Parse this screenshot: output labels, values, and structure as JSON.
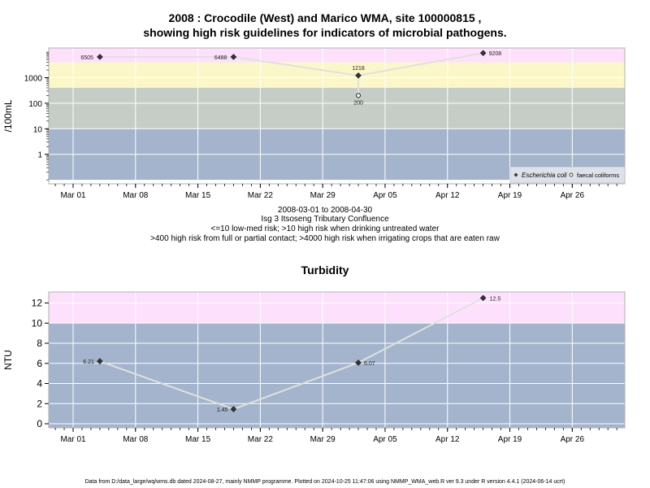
{
  "titles": {
    "main_line1": "2008 : Crocodile (West) and Marico WMA, site 100000815 ,",
    "main_line2": "showing high risk guidelines for indicators of microbial pathogens.",
    "turbidity": "Turbidity"
  },
  "captions": {
    "date_range": "2008-03-01 to 2008-04-30",
    "site_name": "Isg 3 Itsoseng Tributary Confluence",
    "risk_line1": "<=10 low-med risk; >10 high risk when drinking untreated water",
    "risk_line2": ">400 high risk from full or partial contact; >4000 high risk when irrigating crops that are eaten raw"
  },
  "footer": "Data from D:/data_large/wq/wms.db dated 2024-08-27, mainly NMMP programme. Plotted on 2024-10-25 11:47:06 using NMMP_WMA_web.R ver 9.3 under R version 4.4.1 (2024-06-14 ucrt)",
  "colors": {
    "band_low": "#a3b4cc",
    "band_mid": "#c5cdc6",
    "band_high": "#fbf7c9",
    "band_top": "#fde1fc",
    "line": "#e0e0e0",
    "grid": "#ffffff"
  },
  "chart_data": [
    {
      "type": "line",
      "title": "",
      "ylabel": "/100mL",
      "y_scale": "log",
      "ylim": [
        0.1,
        20000
      ],
      "x_ticks": [
        "Mar 01",
        "Mar 08",
        "Mar 15",
        "Mar 22",
        "Mar 29",
        "Apr 05",
        "Apr 12",
        "Apr 19",
        "Apr 26"
      ],
      "x_tick_dates": [
        "2008-03-01",
        "2008-03-08",
        "2008-03-15",
        "2008-03-22",
        "2008-03-29",
        "2008-04-05",
        "2008-04-12",
        "2008-04-19",
        "2008-04-26"
      ],
      "y_ticks": [
        "1",
        "10",
        "100",
        "1000"
      ],
      "y_tick_values": [
        1,
        10,
        100,
        1000
      ],
      "bands": [
        {
          "from": 0.1,
          "to": 10,
          "color": "#a3b4cc"
        },
        {
          "from": 10,
          "to": 400,
          "color": "#c5cdc6"
        },
        {
          "from": 400,
          "to": 4000,
          "color": "#fbf7c9"
        },
        {
          "from": 4000,
          "to": 20000,
          "color": "#fde1fc"
        }
      ],
      "series": [
        {
          "name": "Escherichia coli",
          "marker": "filled-diamond",
          "points": [
            {
              "x": "2008-03-04",
              "y": 6505,
              "label": "6505"
            },
            {
              "x": "2008-03-19",
              "y": 6488,
              "label": "6488"
            },
            {
              "x": "2008-04-02",
              "y": 1218,
              "label": "1218"
            },
            {
              "x": "2008-04-16",
              "y": 9208,
              "label": "9208"
            }
          ]
        },
        {
          "name": "faecal coliforms",
          "marker": "open-circle",
          "points": [
            {
              "x": "2008-04-02",
              "y": 200,
              "label": "200"
            }
          ]
        }
      ],
      "legend_position": "bottom-right",
      "grid": true
    },
    {
      "type": "line",
      "title": "Turbidity",
      "ylabel": "NTU",
      "ylim": [
        -0.6,
        13.3
      ],
      "x_ticks": [
        "Mar 01",
        "Mar 08",
        "Mar 15",
        "Mar 22",
        "Mar 29",
        "Apr 05",
        "Apr 12",
        "Apr 19",
        "Apr 26"
      ],
      "x_tick_dates": [
        "2008-03-01",
        "2008-03-08",
        "2008-03-15",
        "2008-03-22",
        "2008-03-29",
        "2008-04-05",
        "2008-04-12",
        "2008-04-19",
        "2008-04-26"
      ],
      "y_ticks": [
        "0",
        "2",
        "4",
        "6",
        "8",
        "10",
        "12"
      ],
      "y_tick_values": [
        0,
        2,
        4,
        6,
        8,
        10,
        12
      ],
      "bands": [
        {
          "from": -0.6,
          "to": 10,
          "color": "#a3b4cc"
        },
        {
          "from": 10,
          "to": 13.3,
          "color": "#fde1fc"
        }
      ],
      "series": [
        {
          "name": "Turbidity",
          "marker": "filled-diamond",
          "points": [
            {
              "x": "2008-03-04",
              "y": 6.21,
              "label": "6.21"
            },
            {
              "x": "2008-03-19",
              "y": 1.45,
              "label": "1.45"
            },
            {
              "x": "2008-04-02",
              "y": 6.07,
              "label": "6.07"
            },
            {
              "x": "2008-04-16",
              "y": 12.5,
              "label": "12.5"
            }
          ]
        }
      ],
      "grid": true
    }
  ]
}
